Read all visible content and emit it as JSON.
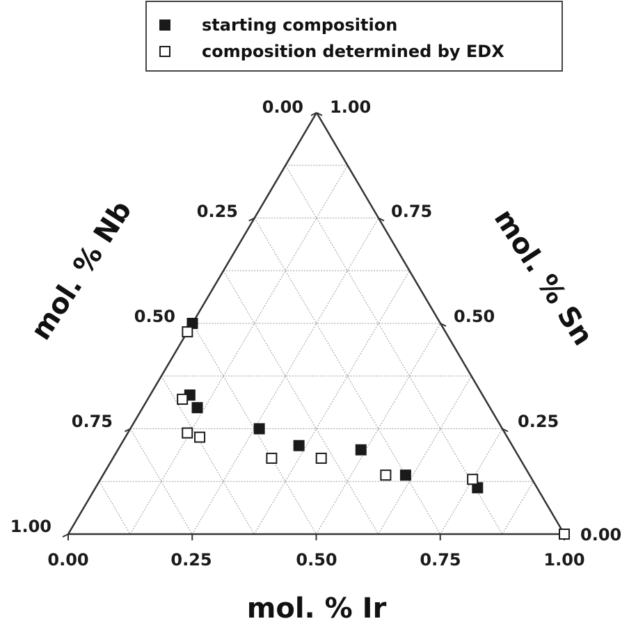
{
  "chart_data": {
    "type": "scatter",
    "subtype": "ternary",
    "title": "",
    "axes": {
      "bottom": {
        "label": "mol. % Ir",
        "ticks": [
          "0.00",
          "0.25",
          "0.50",
          "0.75",
          "1.00"
        ]
      },
      "left": {
        "label": "mol. % Nb",
        "ticks": [
          "0.00",
          "0.25",
          "0.50",
          "0.75",
          "1.00"
        ]
      },
      "right": {
        "label": "mol. % Sn",
        "ticks": [
          "1.00",
          "0.75",
          "0.50",
          "0.25",
          "0.00"
        ]
      }
    },
    "grid": true,
    "legend": {
      "position": "top",
      "entries": [
        {
          "label": "starting composition",
          "marker": "filled-square"
        },
        {
          "label": "composition determined by EDX",
          "marker": "open-square"
        }
      ]
    },
    "series": [
      {
        "name": "starting composition",
        "marker": "filled-square",
        "color": "#1a1a1a",
        "points": [
          {
            "ir": 0.0,
            "nb": 0.5,
            "sn": 0.5
          },
          {
            "ir": 0.08,
            "nb": 0.59,
            "sn": 0.33
          },
          {
            "ir": 0.11,
            "nb": 0.59,
            "sn": 0.3
          },
          {
            "ir": 0.26,
            "nb": 0.49,
            "sn": 0.25
          },
          {
            "ir": 0.36,
            "nb": 0.43,
            "sn": 0.21
          },
          {
            "ir": 0.49,
            "nb": 0.31,
            "sn": 0.2
          },
          {
            "ir": 0.61,
            "nb": 0.25,
            "sn": 0.14
          },
          {
            "ir": 0.77,
            "nb": 0.12,
            "sn": 0.11
          }
        ]
      },
      {
        "name": "composition determined by EDX",
        "marker": "open-square",
        "color": "#1a1a1a",
        "points": [
          {
            "ir": 0.0,
            "nb": 0.52,
            "sn": 0.48
          },
          {
            "ir": 0.07,
            "nb": 0.61,
            "sn": 0.32
          },
          {
            "ir": 0.12,
            "nb": 0.64,
            "sn": 0.24
          },
          {
            "ir": 0.15,
            "nb": 0.62,
            "sn": 0.23
          },
          {
            "ir": 0.32,
            "nb": 0.5,
            "sn": 0.18
          },
          {
            "ir": 0.42,
            "nb": 0.4,
            "sn": 0.18
          },
          {
            "ir": 0.57,
            "nb": 0.29,
            "sn": 0.14
          },
          {
            "ir": 0.75,
            "nb": 0.12,
            "sn": 0.13
          },
          {
            "ir": 1.0,
            "nb": 0.0,
            "sn": 0.0
          }
        ]
      }
    ]
  }
}
